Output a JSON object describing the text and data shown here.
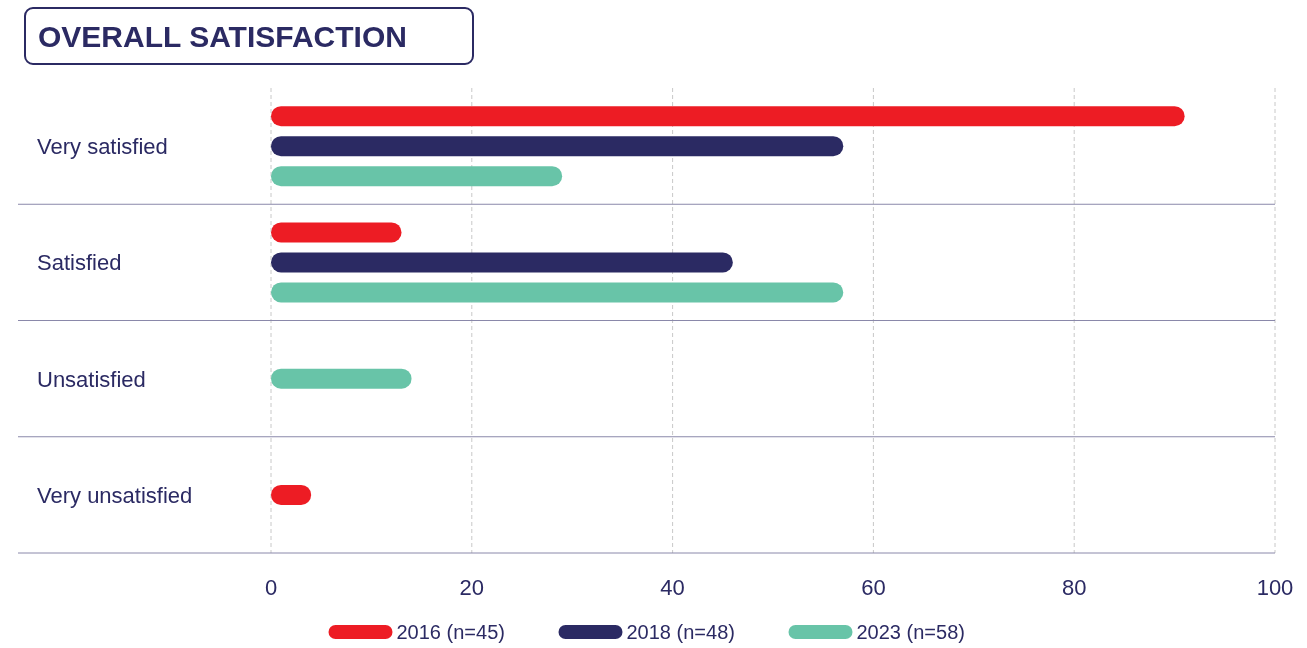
{
  "chart_data": {
    "type": "bar",
    "title": "OVERALL SATISFACTION",
    "orientation": "horizontal",
    "categories": [
      "Very satisfied",
      "Satisfied",
      "Unsatisfied",
      "Very unsatisfied"
    ],
    "series": [
      {
        "name": "2016 (n=45)",
        "color": "#ed1c24",
        "values": [
          91,
          13,
          null,
          4
        ]
      },
      {
        "name": "2018 (n=48)",
        "color": "#2b2a63",
        "values": [
          57,
          46,
          null,
          null
        ]
      },
      {
        "name": "2023 (n=58)",
        "color": "#68c4a8",
        "values": [
          29,
          57,
          14,
          null
        ]
      }
    ],
    "xlim": [
      0,
      100
    ],
    "xticks": [
      0,
      20,
      40,
      60,
      80,
      100
    ],
    "grid": "x",
    "legend": "bottom"
  }
}
